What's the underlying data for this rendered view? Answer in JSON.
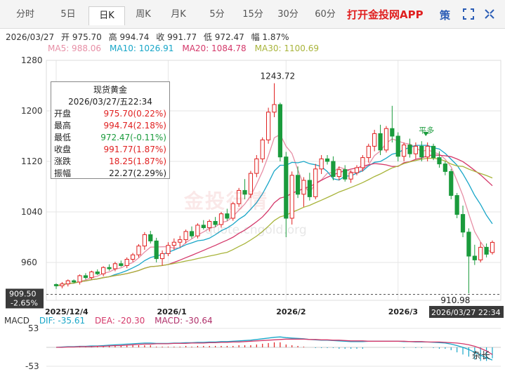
{
  "period_tabs": [
    {
      "label": "分时",
      "active": false
    },
    {
      "label": "5日",
      "active": false
    },
    {
      "label": "日K",
      "active": true
    },
    {
      "label": "周K",
      "active": false
    },
    {
      "label": "月K",
      "active": false
    },
    {
      "label": "5分",
      "active": false
    },
    {
      "label": "15分",
      "active": false
    },
    {
      "label": "30分",
      "active": false
    },
    {
      "label": "60分",
      "active": false
    }
  ],
  "toolbar": {
    "app_link": "打开金投网APP",
    "settings_glyph": "策",
    "expand_icon": "expand-icon",
    "fullscreen_icon": "fullscreen-icon"
  },
  "info": {
    "date": "2026/03/27",
    "open": "开 975.70",
    "high": "高 994.74",
    "close": "收 991.77",
    "low": "低 972.47",
    "amplitude": "幅 1.87%"
  },
  "ma_legend": [
    {
      "text": "MA5: 988.06",
      "color": "#e78fa6"
    },
    {
      "text": "MA10: 1026.91",
      "color": "#18a6c8"
    },
    {
      "text": "MA20: 1084.78",
      "color": "#d4386a"
    },
    {
      "text": "MA30: 1100.69",
      "color": "#a8b43a"
    }
  ],
  "tooltip": {
    "title": "现货黄金",
    "date": "2026/03/27/五22:34",
    "rows": [
      {
        "label": "开盘",
        "value": "975.70(0.22%)",
        "color": "#e02020"
      },
      {
        "label": "最高",
        "value": "994.74(2.18%)",
        "color": "#e02020"
      },
      {
        "label": "最低",
        "value": "972.47(-0.11%)",
        "color": "#1a9b3c"
      },
      {
        "label": "收盘",
        "value": "991.77(1.87%)",
        "color": "#e02020"
      },
      {
        "label": "涨跌",
        "value": "18.25(1.87%)",
        "color": "#e02020"
      },
      {
        "label": "振幅",
        "value": "22.27(2.29%)",
        "color": "#222222"
      }
    ]
  },
  "watermark": {
    "text": "金投行情",
    "url": "quote.cngold.org"
  },
  "macd_legend": {
    "title": "MACD",
    "dif": "DIF: -35.61",
    "dea": "DEA: -20.30",
    "macd": "MACD: -30.64"
  },
  "corner_label": "杂长",
  "colors": {
    "up": "#e02020",
    "down": "#1a9b3c",
    "grid": "#e6e6e6",
    "dif": "#18a6c8",
    "dea": "#d4386a"
  },
  "chart_data": {
    "type": "candlestick",
    "instrument": "现货黄金",
    "y_ticks": [
      1280,
      1200,
      1120,
      1040,
      960
    ],
    "ylim": [
      900,
      1280
    ],
    "x_tick_labels": [
      "2025/12/4",
      "2026/1",
      "2026/2",
      "2026/3",
      "2026/03/27 22:34"
    ],
    "annotations": {
      "high": "1243.72",
      "low": "910.98",
      "crosshair_price": "909.50",
      "crosshair_change": "-2.65%",
      "signal": "平多"
    },
    "candles": [
      [
        925,
        927,
        918,
        923
      ],
      [
        923,
        929,
        919,
        926
      ],
      [
        926,
        933,
        922,
        931
      ],
      [
        931,
        933,
        927,
        929
      ],
      [
        929,
        941,
        925,
        939
      ],
      [
        939,
        943,
        933,
        936
      ],
      [
        936,
        947,
        933,
        945
      ],
      [
        945,
        949,
        940,
        942
      ],
      [
        942,
        954,
        938,
        952
      ],
      [
        952,
        957,
        947,
        950
      ],
      [
        950,
        961,
        946,
        958
      ],
      [
        958,
        963,
        953,
        955
      ],
      [
        955,
        968,
        951,
        965
      ],
      [
        965,
        975,
        961,
        972
      ],
      [
        972,
        989,
        968,
        986
      ],
      [
        986,
        1008,
        980,
        1004
      ],
      [
        1004,
        1010,
        990,
        994
      ],
      [
        994,
        999,
        960,
        966
      ],
      [
        966,
        979,
        955,
        974
      ],
      [
        974,
        992,
        970,
        987
      ],
      [
        987,
        998,
        980,
        992
      ],
      [
        992,
        1002,
        984,
        996
      ],
      [
        996,
        1012,
        990,
        1009
      ],
      [
        1009,
        1017,
        998,
        1002
      ],
      [
        1002,
        1022,
        998,
        1019
      ],
      [
        1019,
        1027,
        1012,
        1015
      ],
      [
        1015,
        1028,
        1009,
        1025
      ],
      [
        1025,
        1032,
        1016,
        1020
      ],
      [
        1020,
        1040,
        1015,
        1037
      ],
      [
        1037,
        1045,
        1026,
        1030
      ],
      [
        1030,
        1056,
        1026,
        1053
      ],
      [
        1053,
        1078,
        1048,
        1074
      ],
      [
        1074,
        1092,
        1060,
        1068
      ],
      [
        1068,
        1105,
        1062,
        1101
      ],
      [
        1101,
        1130,
        1095,
        1124
      ],
      [
        1124,
        1158,
        1118,
        1154
      ],
      [
        1154,
        1205,
        1148,
        1198
      ],
      [
        1198,
        1243.72,
        1190,
        1210
      ],
      [
        1210,
        1213,
        1120,
        1127
      ],
      [
        1127,
        1135,
        1000,
        1030
      ],
      [
        1030,
        1104,
        1020,
        1098
      ],
      [
        1098,
        1112,
        1062,
        1068
      ],
      [
        1068,
        1095,
        1048,
        1090
      ],
      [
        1090,
        1102,
        1058,
        1064
      ],
      [
        1064,
        1116,
        1060,
        1108
      ],
      [
        1108,
        1130,
        1100,
        1124
      ],
      [
        1124,
        1130,
        1115,
        1120
      ],
      [
        1120,
        1128,
        1090,
        1096
      ],
      [
        1096,
        1112,
        1090,
        1107
      ],
      [
        1107,
        1114,
        1088,
        1092
      ],
      [
        1092,
        1106,
        1086,
        1102
      ],
      [
        1102,
        1114,
        1098,
        1110
      ],
      [
        1110,
        1130,
        1104,
        1126
      ],
      [
        1126,
        1148,
        1118,
        1144
      ],
      [
        1144,
        1170,
        1136,
        1164
      ],
      [
        1164,
        1178,
        1130,
        1138
      ],
      [
        1138,
        1176,
        1134,
        1172
      ],
      [
        1172,
        1208,
        1150,
        1160
      ],
      [
        1160,
        1166,
        1120,
        1128
      ],
      [
        1128,
        1150,
        1120,
        1146
      ],
      [
        1146,
        1156,
        1126,
        1132
      ],
      [
        1132,
        1150,
        1124,
        1144
      ],
      [
        1144,
        1152,
        1120,
        1127
      ],
      [
        1127,
        1150,
        1120,
        1144
      ],
      [
        1144,
        1148,
        1122,
        1126
      ],
      [
        1126,
        1136,
        1110,
        1116
      ],
      [
        1116,
        1120,
        1098,
        1104
      ],
      [
        1104,
        1108,
        1060,
        1066
      ],
      [
        1066,
        1070,
        1030,
        1036
      ],
      [
        1036,
        1050,
        1000,
        1008
      ],
      [
        1008,
        1014,
        910.98,
        970
      ],
      [
        970,
        988,
        956,
        964
      ],
      [
        964,
        992,
        960,
        984
      ],
      [
        984,
        990,
        968,
        973
      ],
      [
        975.7,
        994.74,
        972.47,
        991.77
      ]
    ],
    "macd": {
      "ylim": [
        -53,
        53
      ],
      "y_ticks": [
        53,
        -53
      ],
      "dif": [
        0,
        1,
        2,
        2,
        3,
        3,
        4,
        4,
        5,
        6,
        7,
        8,
        9,
        10,
        11,
        12,
        12,
        11,
        11,
        11,
        12,
        12,
        13,
        13,
        14,
        14,
        15,
        15,
        16,
        16,
        17,
        18,
        19,
        20,
        22,
        24,
        26,
        28,
        29,
        27,
        26,
        25,
        24,
        22,
        21,
        20,
        20,
        19,
        18,
        17,
        16,
        16,
        16,
        17,
        17,
        17,
        17,
        17,
        17,
        16,
        16,
        15,
        15,
        15,
        14,
        13,
        12,
        9,
        5,
        0,
        -6,
        -14,
        -22,
        -29,
        -35.61
      ],
      "dea": [
        0,
        0,
        1,
        1,
        2,
        2,
        2,
        3,
        3,
        4,
        5,
        5,
        6,
        7,
        8,
        9,
        9,
        10,
        10,
        10,
        11,
        11,
        11,
        12,
        12,
        12,
        13,
        13,
        14,
        14,
        15,
        15,
        16,
        17,
        18,
        19,
        20,
        21,
        22,
        23,
        23,
        23,
        23,
        22,
        22,
        21,
        21,
        20,
        20,
        19,
        18,
        18,
        18,
        17,
        17,
        17,
        17,
        17,
        17,
        17,
        16,
        16,
        16,
        15,
        15,
        15,
        14,
        13,
        12,
        10,
        7,
        3,
        -3,
        -10,
        -20.3
      ],
      "hist": [
        0,
        2,
        2,
        2,
        2,
        2,
        4,
        2,
        4,
        4,
        4,
        6,
        6,
        6,
        6,
        6,
        6,
        2,
        2,
        2,
        2,
        2,
        4,
        2,
        4,
        4,
        4,
        4,
        4,
        4,
        4,
        6,
        6,
        6,
        8,
        10,
        12,
        14,
        14,
        8,
        6,
        4,
        2,
        0,
        -2,
        -2,
        -2,
        -2,
        -4,
        -4,
        -4,
        -4,
        -4,
        0,
        0,
        0,
        0,
        0,
        0,
        -2,
        0,
        -2,
        -2,
        0,
        -2,
        -4,
        -4,
        -8,
        -14,
        -20,
        -26,
        -34,
        -38,
        -38,
        -30.64
      ]
    }
  }
}
